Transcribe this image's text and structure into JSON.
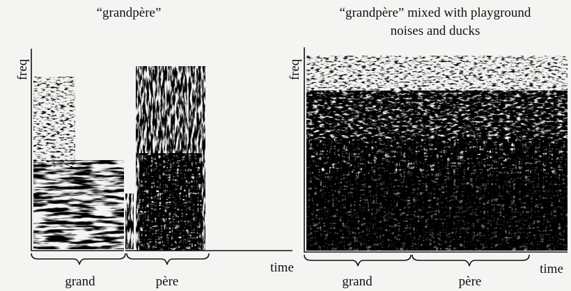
{
  "panels": [
    {
      "title": "“grandpère”",
      "y_label": "freq",
      "x_label": "time",
      "segments": [
        "grand",
        "père"
      ]
    },
    {
      "title_lines": [
        "“grandpère” mixed with playground",
        "noises and ducks"
      ],
      "y_label": "freq",
      "x_label": "time",
      "segments": [
        "grand",
        "père"
      ]
    }
  ]
}
